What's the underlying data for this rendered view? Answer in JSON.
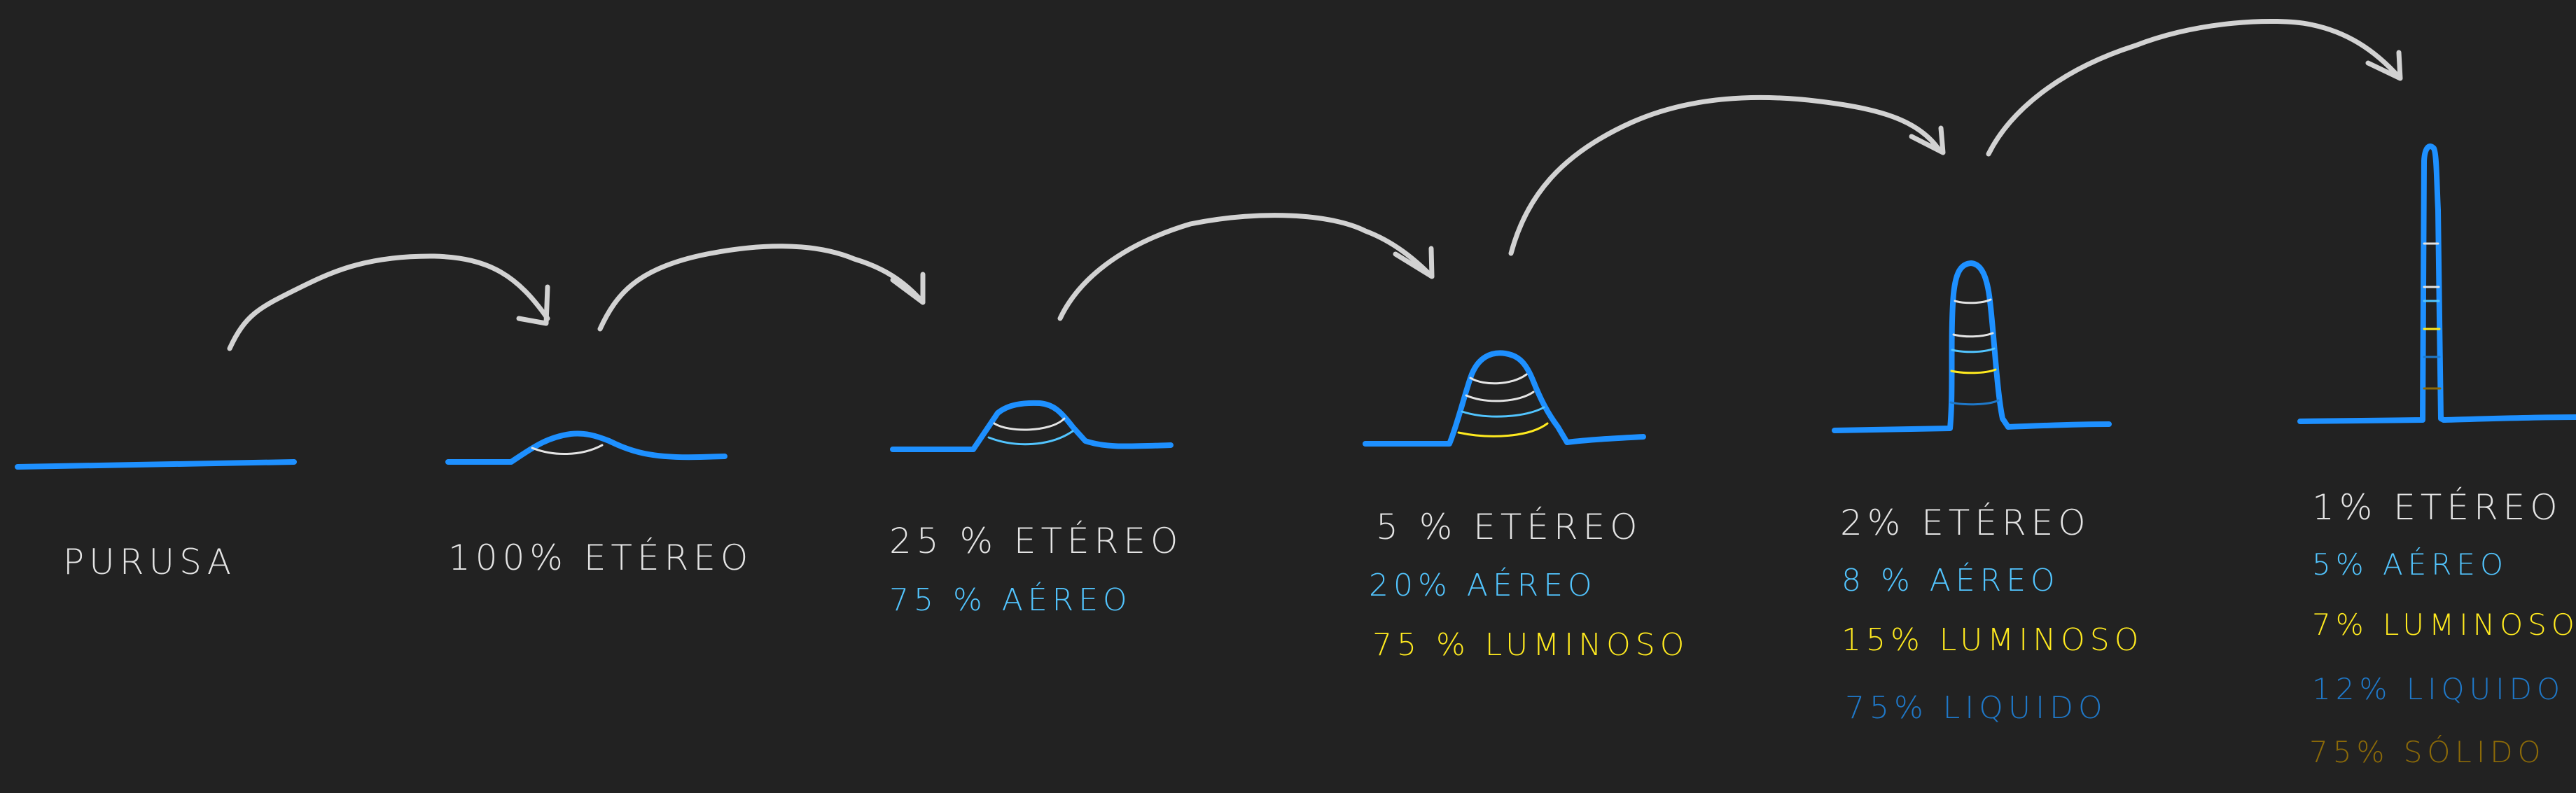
{
  "colors": {
    "background": "#222222",
    "ground": "#1e90ff",
    "arrow": "#d2d2d2",
    "etereo": "#e4e4e4",
    "aereo": "#52c5ff",
    "luminoso": "#ffea1f",
    "liquido": "#1f78c8",
    "solido": "#8c6a08"
  },
  "stages": [
    {
      "labels": [
        "PURUSA"
      ]
    },
    {
      "labels": [
        "100% ETÉREO"
      ]
    },
    {
      "labels": [
        "25 % ETÉREO",
        "75 % AÉREO"
      ]
    },
    {
      "labels": [
        "5 % ETÉREO",
        "20% AÉREO",
        "75 % LUMINOSO"
      ]
    },
    {
      "labels": [
        "2% ETÉREO",
        "8 % AÉREO",
        "15% LUMINOSO",
        "75% LIQUIDO"
      ]
    },
    {
      "labels": [
        "1% ETÉREO",
        "5% AÉREO",
        "7% LUMINOSO",
        "12% LIQUIDO",
        "75% SÓLIDO"
      ]
    }
  ]
}
